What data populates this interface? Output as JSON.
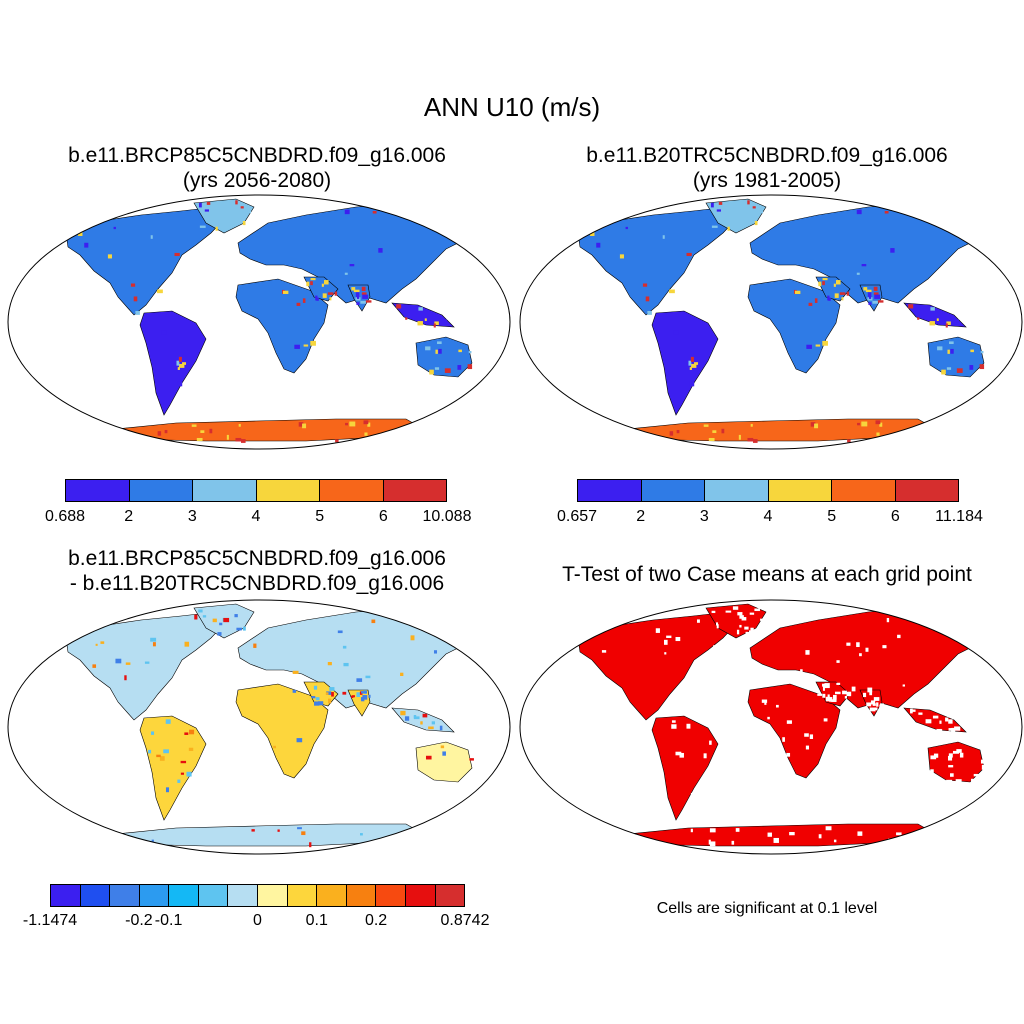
{
  "title": "ANN U10 (m/s)",
  "panels": {
    "top_left": {
      "title_line1": "b.e11.BRCP85C5CNBDRD.f09_g16.006",
      "title_line2": "(yrs 2056-2080)",
      "colorbar": {
        "colors": [
          "#3c1ff0",
          "#2f7be6",
          "#80c4ea",
          "#f7d63c",
          "#f7661a",
          "#d62e2e"
        ],
        "labels": [
          "0.688",
          "2",
          "3",
          "4",
          "5",
          "6",
          "10.088"
        ]
      }
    },
    "top_right": {
      "title_line1": "b.e11.B20TRC5CNBDRD.f09_g16.006",
      "title_line2": "(yrs 1981-2005)",
      "colorbar": {
        "colors": [
          "#3c1ff0",
          "#2f7be6",
          "#80c4ea",
          "#f7d63c",
          "#f7661a",
          "#d62e2e"
        ],
        "labels": [
          "0.657",
          "2",
          "3",
          "4",
          "5",
          "6",
          "11.184"
        ]
      }
    },
    "bottom_left": {
      "title_line1": "b.e11.BRCP85C5CNBDRD.f09_g16.006",
      "title_line2": "- b.e11.B20TRC5CNBDRD.f09_g16.006",
      "colorbar": {
        "colors": [
          "#3b1ff0",
          "#1f4ff0",
          "#3f7fe8",
          "#2c9bf0",
          "#14b8f5",
          "#5ec4f0",
          "#b6def2",
          "#fff5a0",
          "#fdd63c",
          "#fab01e",
          "#f78010",
          "#f74a10",
          "#e60f0f",
          "#d62e2e"
        ],
        "labels": [
          "-1.1474",
          "-0.2",
          "-0.1",
          "0",
          "0.1",
          "0.2",
          "0.8742"
        ]
      }
    },
    "bottom_right": {
      "title": "T-Test of two Case means at each grid point",
      "note": "Cells are significant at 0.1 level",
      "sig_color": "#f00000"
    }
  }
}
